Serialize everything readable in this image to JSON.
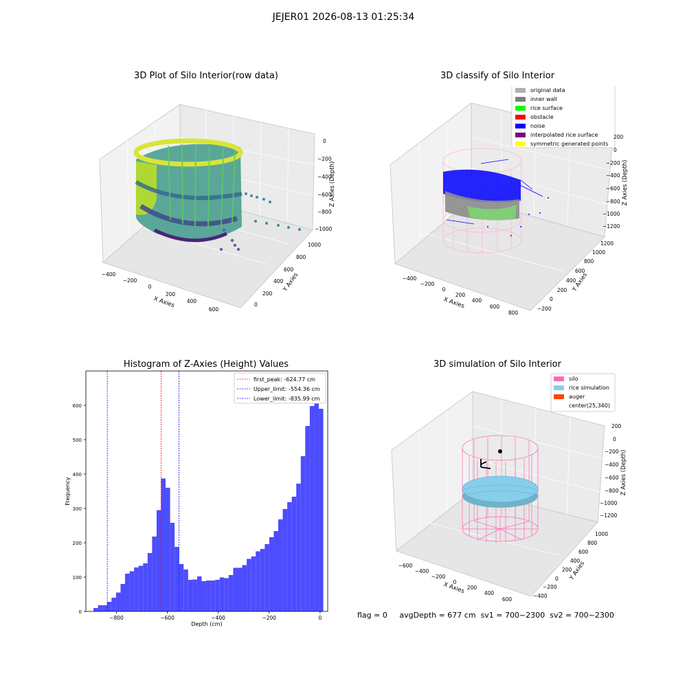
{
  "figure": {
    "suptitle": "JEJER01 2026-08-13 01:25:34"
  },
  "footer": {
    "flag": "flag = 0",
    "avg_depth": "avgDepth = 677 cm",
    "sv1": "sv1 = 700~2300",
    "sv2": "sv2 = 700~2300"
  },
  "colors": {
    "hist_bar": "#4d4dff",
    "first_peak": "#ff0000",
    "limits": "#0000ff",
    "silo": "#ff69b4",
    "rice": "#87ceeb",
    "auger": "#ff4500",
    "noise": "#0000ff",
    "rice_surface": "#00ff00",
    "inner_wall": "#808080"
  },
  "chart_data": [
    {
      "type": "scatter",
      "subtype": "3d",
      "title": "3D Plot of Silo Interior(row data)",
      "xlabel": "X Axies",
      "ylabel": "Y Axies",
      "zlabel": "Z Axies (Depth)",
      "xticks": [
        "−400",
        "−200",
        "0",
        "200",
        "400",
        "600"
      ],
      "yticks": [
        "0",
        "200",
        "400",
        "600",
        "800",
        "1000"
      ],
      "zticks": [
        "0",
        "−200",
        "−400",
        "−600",
        "−800",
        "−1000"
      ],
      "xlim": [
        -450,
        700
      ],
      "ylim": [
        -100,
        1100
      ],
      "zlim": [
        -1050,
        50
      ],
      "colormap": "viridis"
    },
    {
      "type": "scatter",
      "subtype": "3d",
      "title": "3D classify of Silo Interior",
      "xlabel": "X Axies",
      "ylabel": "Y Axies",
      "zlabel": "Z Axies (Depth)",
      "xticks": [
        "−400",
        "−200",
        "0",
        "200",
        "400",
        "600",
        "800"
      ],
      "yticks": [
        "−200",
        "0",
        "200",
        "400",
        "600",
        "800",
        "1000",
        "1200"
      ],
      "zticks": [
        "200",
        "0",
        "−200",
        "−400",
        "−600",
        "−800",
        "−1000",
        "−1200"
      ],
      "legend": [
        {
          "label": "original data",
          "color": "#b0b0b0"
        },
        {
          "label": "inner wall",
          "color": "#808080"
        },
        {
          "label": "rice surface",
          "color": "#00ff00"
        },
        {
          "label": "obstacle",
          "color": "#ff0000"
        },
        {
          "label": "noise",
          "color": "#0000ff"
        },
        {
          "label": "interpolated rice surface",
          "color": "#800080"
        },
        {
          "label": "symmetric generated points",
          "color": "#ffff00"
        }
      ],
      "legend_position": "top-right"
    },
    {
      "type": "bar",
      "subtype": "histogram",
      "title": "Histogram of Z-Axies (Height) Values",
      "xlabel": "Depth (cm)",
      "ylabel": "Frequency",
      "xlim": [
        -920,
        30
      ],
      "ylim": [
        0,
        700
      ],
      "xticks": [
        -800,
        -600,
        -400,
        -200,
        0
      ],
      "xtick_labels": [
        "−800",
        "−600",
        "−400",
        "−200",
        "0"
      ],
      "yticks": [
        0,
        100,
        200,
        300,
        400,
        500,
        600
      ],
      "bin_start": -890,
      "bin_width": 17.7,
      "values": [
        10,
        18,
        18,
        28,
        40,
        55,
        80,
        110,
        117,
        128,
        133,
        140,
        170,
        218,
        295,
        387,
        360,
        258,
        188,
        138,
        122,
        92,
        93,
        102,
        88,
        90,
        90,
        92,
        99,
        97,
        106,
        127,
        127,
        135,
        153,
        160,
        175,
        182,
        196,
        216,
        234,
        268,
        298,
        318,
        334,
        372,
        452,
        540,
        598,
        658,
        590
      ],
      "vlines": [
        {
          "x": -624.77,
          "color": "#ff0000",
          "label": "first_peak: -624.77 cm"
        },
        {
          "x": -554.36,
          "color": "#0000ff",
          "label": "Upper_limit: -554.36 cm"
        },
        {
          "x": -835.99,
          "color": "#0000ff",
          "label": "Lower_limit: -835.99 cm"
        }
      ],
      "legend_position": "top-right"
    },
    {
      "type": "scatter",
      "subtype": "3d",
      "title": "3D simulation of Silo Interior",
      "xlabel": "X Axies",
      "ylabel": "Y Axies",
      "zlabel": "Z Axies (Depth)",
      "xticks": [
        "−600",
        "−400",
        "−200",
        "0",
        "200",
        "400",
        "600"
      ],
      "yticks": [
        "−400",
        "−200",
        "0",
        "200",
        "400",
        "600",
        "800",
        "1000"
      ],
      "zticks": [
        "200",
        "0",
        "−200",
        "−400",
        "−600",
        "−800",
        "−1000",
        "−1200"
      ],
      "legend": [
        {
          "label": "silo",
          "color": "#ff69b4"
        },
        {
          "label": "rice simulation",
          "color": "#87ceeb"
        },
        {
          "label": "auger",
          "color": "#ff4500"
        },
        {
          "label": "center(25,340)",
          "color": ""
        }
      ],
      "legend_position": "top-right"
    }
  ]
}
